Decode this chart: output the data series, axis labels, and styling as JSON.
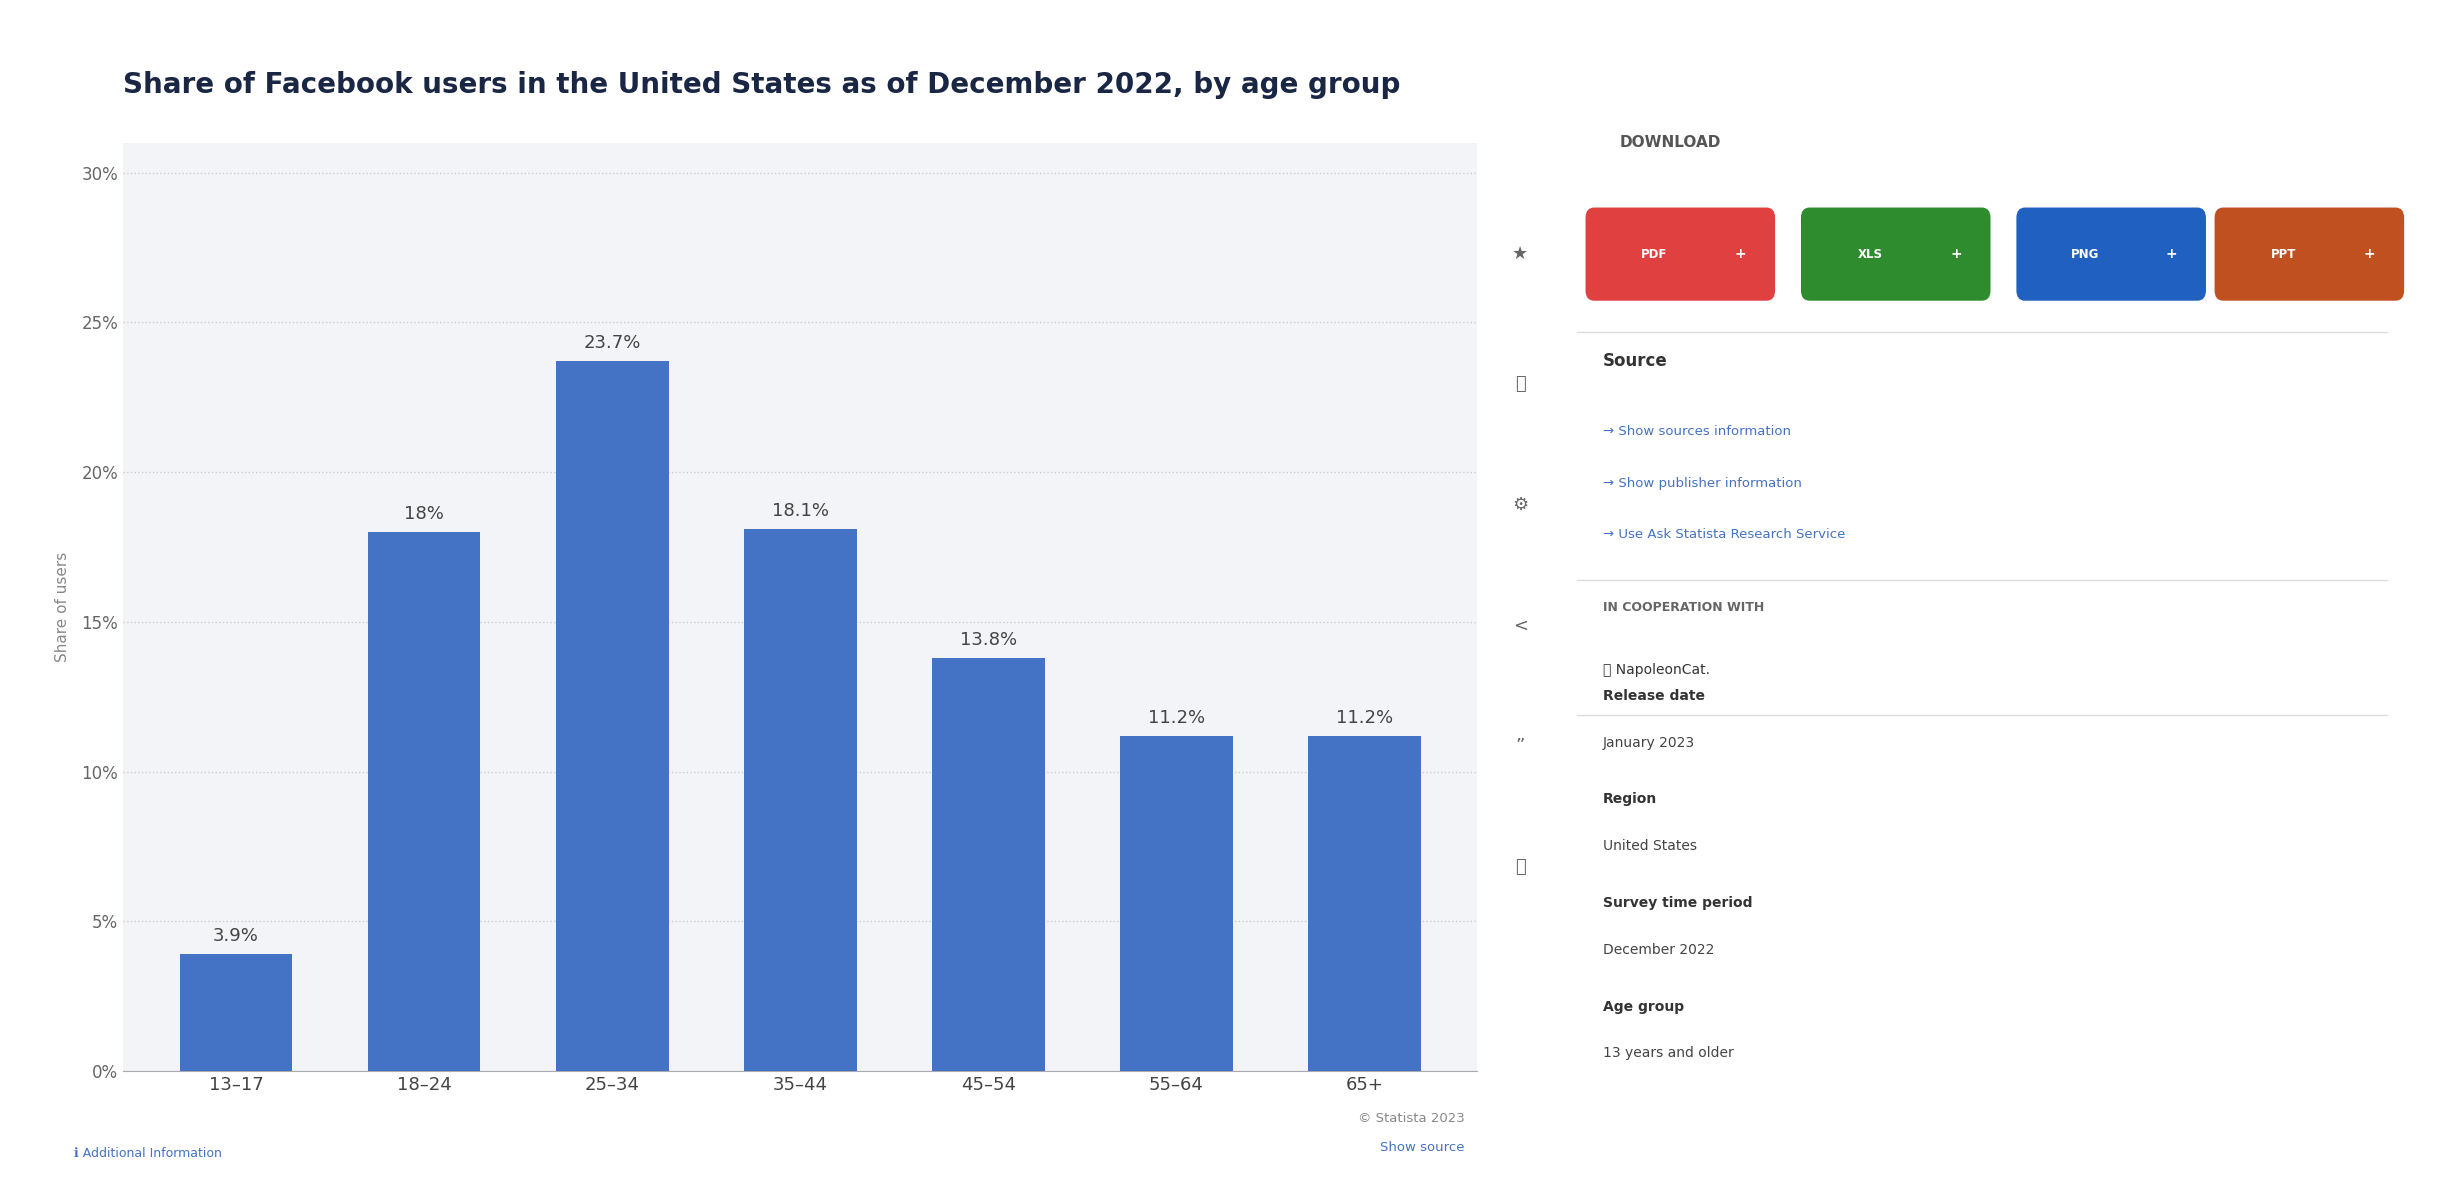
{
  "title": "Share of Facebook users in the United States as of December 2022, by age group",
  "categories": [
    "13–17",
    "18–24",
    "25–34",
    "35–44",
    "45–54",
    "55–64",
    "65+"
  ],
  "values": [
    3.9,
    18.0,
    23.7,
    18.1,
    13.8,
    11.2,
    11.2
  ],
  "bar_labels": [
    "3.9%",
    "18%",
    "23.7%",
    "18.1%",
    "13.8%",
    "11.2%",
    "11.2%"
  ],
  "bar_color": "#4472C4",
  "background_color": "#f2f4f7",
  "chart_bg": "#ffffff",
  "ylabel": "Share of users",
  "yticks": [
    0,
    5,
    10,
    15,
    20,
    25,
    30
  ],
  "ytick_labels": [
    "0%",
    "5%",
    "10%",
    "15%",
    "20%",
    "25%",
    "30%"
  ],
  "ylim": [
    0,
    31
  ],
  "title_color": "#1a2744",
  "title_fontsize": 20,
  "label_fontsize": 13,
  "tick_fontsize": 12,
  "ylabel_fontsize": 11,
  "grid_color": "#cccccc",
  "statista_text": "© Statista 2023",
  "show_source_text": "Show source"
}
